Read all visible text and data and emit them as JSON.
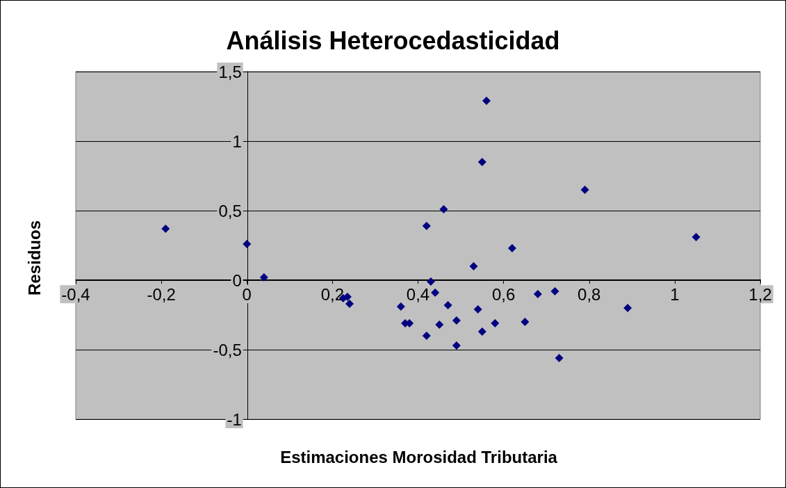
{
  "chart_data": {
    "type": "scatter",
    "title": "Análisis Heterocedasticidad",
    "xlabel": "Estimaciones Morosidad Tributaria",
    "ylabel": "Residuos",
    "x": [
      -0.19,
      0.0,
      0.04,
      0.225,
      0.235,
      0.24,
      0.36,
      0.37,
      0.38,
      0.42,
      0.42,
      0.43,
      0.44,
      0.45,
      0.46,
      0.47,
      0.49,
      0.49,
      0.53,
      0.54,
      0.55,
      0.55,
      0.56,
      0.58,
      0.62,
      0.65,
      0.68,
      0.72,
      0.73,
      0.79,
      0.89,
      1.05
    ],
    "series": [
      {
        "color": "#000080",
        "values": [
          0.37,
          0.26,
          0.02,
          -0.13,
          -0.12,
          -0.17,
          -0.19,
          -0.31,
          -0.31,
          -0.4,
          0.39,
          -0.01,
          -0.09,
          -0.32,
          0.51,
          -0.18,
          -0.29,
          -0.47,
          0.1,
          -0.21,
          0.85,
          -0.37,
          1.29,
          -0.31,
          0.23,
          -0.3,
          -0.1,
          -0.08,
          -0.56,
          0.65,
          -0.2,
          0.31
        ]
      }
    ],
    "xlim": [
      -0.4,
      1.2
    ],
    "xticks": [
      {
        "value": -0.4,
        "label": "-0,4"
      },
      {
        "value": -0.2,
        "label": "-0,2"
      },
      0,
      {
        "value": 0.2,
        "label": "0,2"
      },
      {
        "value": 0.4,
        "label": "0,4"
      },
      {
        "value": 0.6,
        "label": "0,6"
      },
      {
        "value": 0.8,
        "label": "0,8"
      },
      1,
      {
        "value": 1.2,
        "label": "1,2"
      }
    ],
    "ylim": [
      -1,
      1.5
    ],
    "yticks": [
      -1,
      {
        "value": -0.5,
        "label": "-0,5"
      },
      0,
      {
        "value": 0.5,
        "label": "0,5"
      },
      1,
      {
        "value": 1.5,
        "label": "1,5"
      }
    ],
    "grid": "y",
    "marker": "diamond"
  }
}
